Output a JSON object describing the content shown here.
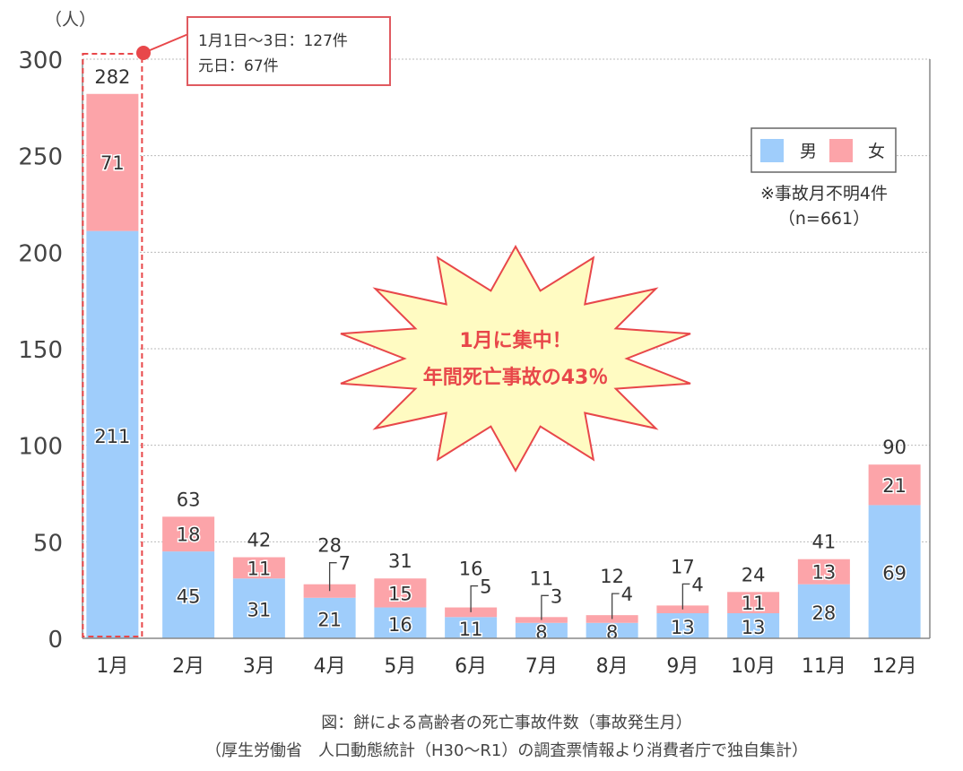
{
  "chart_data": {
    "type": "bar",
    "stacked": true,
    "unit_label": "（人）",
    "categories": [
      "1月",
      "2月",
      "3月",
      "4月",
      "5月",
      "6月",
      "7月",
      "8月",
      "9月",
      "10月",
      "11月",
      "12月"
    ],
    "series": [
      {
        "name": "男",
        "color": "#9fcdfb",
        "values": [
          211,
          45,
          31,
          21,
          16,
          11,
          8,
          8,
          13,
          13,
          28,
          69
        ]
      },
      {
        "name": "女",
        "color": "#fca4a9",
        "values": [
          71,
          18,
          11,
          7,
          15,
          5,
          3,
          4,
          4,
          11,
          13,
          21
        ]
      }
    ],
    "totals": [
      282,
      63,
      42,
      28,
      31,
      16,
      11,
      12,
      17,
      24,
      41,
      90
    ],
    "ylim": [
      0,
      300
    ],
    "yticks": [
      0,
      50,
      100,
      150,
      200,
      250,
      300
    ],
    "grid": true,
    "legend": "top-right",
    "note_lines": [
      "※事故月不明4件",
      "（n=661）"
    ],
    "callout_lines": [
      "1月1日～3日：127件",
      "元日：67件"
    ],
    "highlight_lines": [
      "1月に集中！",
      "年間死亡事故の43％"
    ],
    "caption_lines": [
      "図：餅による高齢者の死亡事故件数（事故発生月）",
      "（厚生労働省　人口動態統計（H30～R1）の調査票情報より消費者庁で独自集計）"
    ],
    "accent_color": "#e8474a"
  }
}
